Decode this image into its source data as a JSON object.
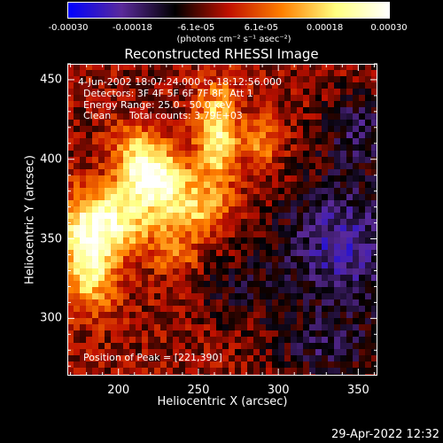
{
  "chart_data": {
    "type": "heatmap",
    "title": "Reconstructed RHESSI Image",
    "xlabel": "Heliocentric X (arcsec)",
    "ylabel": "Heliocentric Y (arcsec)",
    "xlim": [
      168,
      362
    ],
    "ylim": [
      264,
      460
    ],
    "x_ticks": [
      200,
      250,
      300,
      350
    ],
    "y_ticks": [
      300,
      350,
      400,
      450
    ],
    "colorbar": {
      "range": [
        -0.0003,
        0.0003
      ],
      "ticks": [
        -0.0003,
        -0.00018,
        -6.1e-05,
        6.1e-05,
        0.00018,
        0.0003
      ],
      "tick_labels": [
        "-0.00030",
        "-0.00018",
        "-6.1e-05",
        "6.1e-05",
        "0.00018",
        "0.00030"
      ],
      "units": "(photons cm⁻² s⁻¹ asec⁻²)",
      "colors": [
        "#0000ff",
        "#5a2a9a",
        "#000000",
        "#c01000",
        "#ff8000",
        "#ffff80",
        "#ffffff"
      ]
    },
    "annotations": {
      "time_range": "4-Jun-2002 18:07:24.000 to 18:12:56.000",
      "detectors": "Detectors: 3F 4F 5F 6F 7F 8F, Att 1",
      "energy": "Energy Range: 25.0 - 50.0 keV",
      "clean_label": "Clean",
      "total_counts": "Total counts: 3.79E+03",
      "peak": "Position of Peak = [221,390]"
    },
    "peak_position": [
      221,
      390
    ],
    "hot_sources": [
      {
        "x": 221,
        "y": 390,
        "amp": 1.0,
        "sx": 14,
        "sy": 12
      },
      {
        "x": 262,
        "y": 415,
        "amp": 0.75,
        "sx": 9,
        "sy": 22
      },
      {
        "x": 192,
        "y": 362,
        "amp": 0.8,
        "sx": 22,
        "sy": 14
      },
      {
        "x": 182,
        "y": 332,
        "amp": 0.75,
        "sx": 12,
        "sy": 18
      },
      {
        "x": 245,
        "y": 368,
        "amp": 0.55,
        "sx": 15,
        "sy": 13
      },
      {
        "x": 290,
        "y": 410,
        "amp": 0.4,
        "sx": 8,
        "sy": 12
      },
      {
        "x": 236,
        "y": 338,
        "amp": 0.3,
        "sx": 10,
        "sy": 8
      },
      {
        "x": 210,
        "y": 410,
        "amp": 0.35,
        "sx": 10,
        "sy": 10
      }
    ],
    "cold_sources": [
      {
        "x": 340,
        "y": 345,
        "amp": 0.55,
        "sx": 28,
        "sy": 30
      },
      {
        "x": 350,
        "y": 420,
        "amp": 0.35,
        "sx": 16,
        "sy": 18
      },
      {
        "x": 330,
        "y": 280,
        "amp": 0.3,
        "sx": 25,
        "sy": 14
      },
      {
        "x": 275,
        "y": 320,
        "amp": 0.2,
        "sx": 18,
        "sy": 18
      }
    ]
  },
  "footer": {
    "timestamp": "29-Apr-2022 12:32"
  }
}
